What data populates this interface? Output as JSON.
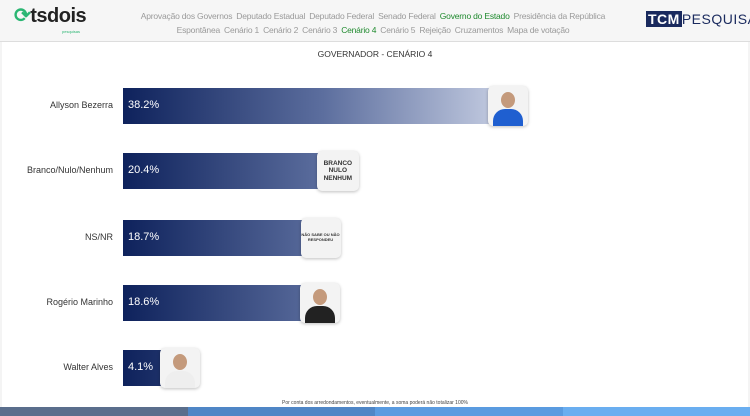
{
  "header": {
    "logo": "tsdois",
    "logo_sub": "pesquisas",
    "nav_row1": [
      {
        "label": "Aprovação dos Governos"
      },
      {
        "label": "Deputado Estadual"
      },
      {
        "label": "Deputado Federal"
      },
      {
        "label": "Senado Federal"
      },
      {
        "label": "Governo do Estado",
        "active": true
      },
      {
        "label": "Presidência da República"
      }
    ],
    "nav_row2": [
      {
        "label": "Espontânea"
      },
      {
        "label": "Cenário 1"
      },
      {
        "label": "Cenário 2"
      },
      {
        "label": "Cenário 3"
      },
      {
        "label": "Cenário 4",
        "active": true
      },
      {
        "label": "Cenário 5"
      },
      {
        "label": "Rejeição"
      },
      {
        "label": "Cruzamentos"
      },
      {
        "label": "Mapa de votação"
      }
    ],
    "brand_right_a": "TCM",
    "brand_right_b": "PESQUISA"
  },
  "chart_data": {
    "type": "bar",
    "orientation": "horizontal",
    "title": "GOVERNADOR - CENÁRIO 4",
    "categories": [
      "Allyson Bezerra",
      "Branco/Nulo/Nenhum",
      "NS/NR",
      "Rogério Marinho",
      "Walter Alves"
    ],
    "values": [
      38.2,
      20.4,
      18.7,
      18.6,
      4.1
    ],
    "value_labels": [
      "38.2%",
      "20.4%",
      "18.7%",
      "18.6%",
      "4.1%"
    ],
    "badges": [
      null,
      "BRANCO NULO NENHUM",
      "NÃO SABE OU NÃO RESPONDEU",
      null,
      null
    ]
  },
  "footnote": "Por conta dos arredondamentos, eventualmente, a soma poderá não totalizar 100%",
  "colors": {
    "bar_dark": "#0e225c",
    "bar_light": "#c5cde2",
    "active_nav": "#1f8a2e",
    "brand": "#2bb673"
  }
}
